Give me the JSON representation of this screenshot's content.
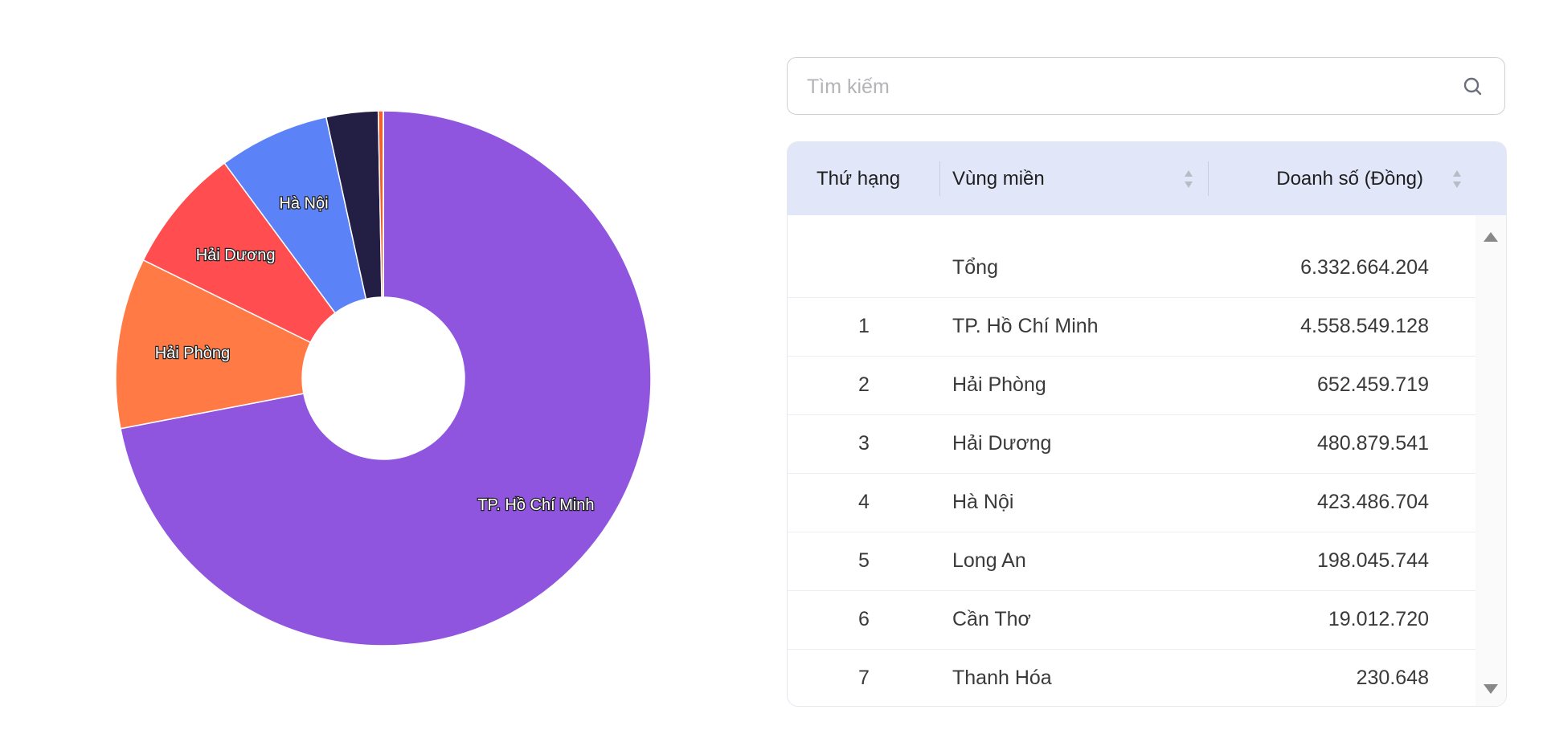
{
  "search": {
    "placeholder": "Tìm kiếm",
    "icon": "search-icon"
  },
  "table": {
    "headers": {
      "rank": "Thứ hạng",
      "region": "Vùng miền",
      "sales": "Doanh số (Đồng)"
    },
    "total": {
      "label": "Tổng",
      "value": "6.332.664.204"
    },
    "rows": [
      {
        "rank": "1",
        "region": "TP. Hồ Chí Minh",
        "value": "4.558.549.128"
      },
      {
        "rank": "2",
        "region": "Hải Phòng",
        "value": "652.459.719"
      },
      {
        "rank": "3",
        "region": "Hải Dương",
        "value": "480.879.541"
      },
      {
        "rank": "4",
        "region": "Hà Nội",
        "value": "423.486.704"
      },
      {
        "rank": "5",
        "region": "Long An",
        "value": "198.045.744"
      },
      {
        "rank": "6",
        "region": "Cần Thơ",
        "value": "19.012.720"
      },
      {
        "rank": "7",
        "region": "Thanh Hóa",
        "value": "230.648"
      }
    ]
  },
  "chart_data": {
    "type": "pie",
    "donut": true,
    "categories": [
      "TP. Hồ Chí Minh",
      "Hải Phòng",
      "Hải Dương",
      "Hà Nội",
      "Long An",
      "Cần Thơ",
      "Thanh Hóa"
    ],
    "values": [
      4558549128,
      652459719,
      480879541,
      423486704,
      198045744,
      19012720,
      230648
    ],
    "colors": [
      "#9055df",
      "#ff7a45",
      "#ff4d50",
      "#5b82f7",
      "#231e43",
      "#f0622b",
      "#f5a623"
    ],
    "labels_shown": [
      "TP. Hồ Chí Minh",
      "Hải Phòng",
      "Hải Dương",
      "Hà Nội"
    ],
    "direction": "counterclockwise-from-top-after-first"
  }
}
